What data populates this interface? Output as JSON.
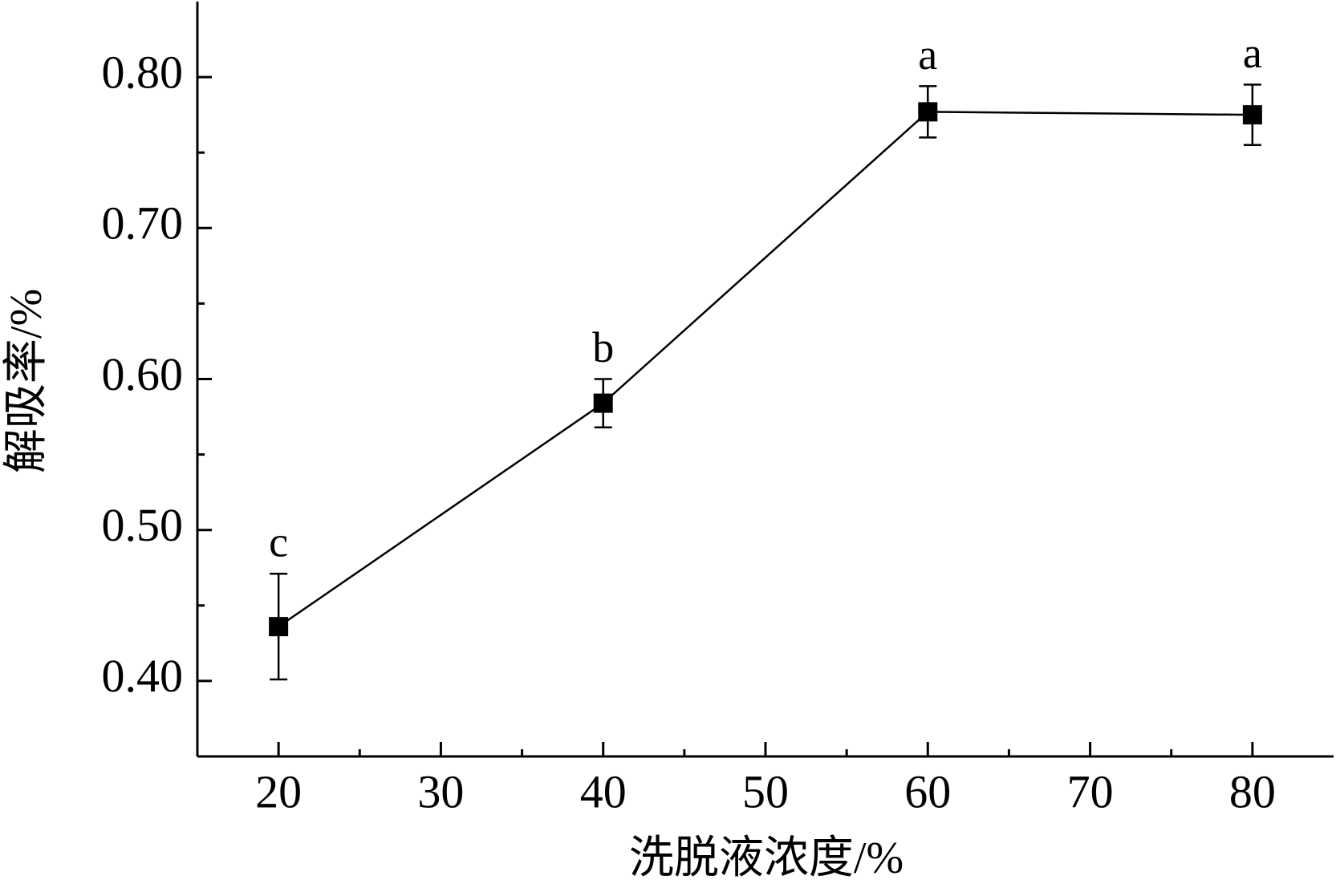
{
  "chart_data": {
    "type": "line",
    "xlabel": "洗脱液浓度/%",
    "ylabel": "解吸率/%",
    "x": [
      20,
      40,
      60,
      80
    ],
    "series": [
      {
        "color": "#000000",
        "values": [
          0.436,
          0.584,
          0.777,
          0.775
        ],
        "errors": [
          0.035,
          0.016,
          0.017,
          0.02
        ]
      }
    ],
    "point_labels": [
      "c",
      "b",
      "a",
      "a"
    ],
    "xlim": [
      15,
      85
    ],
    "xticks": [
      20,
      30,
      40,
      50,
      60,
      70,
      80
    ],
    "xminorticks": [
      25,
      35,
      45,
      55,
      65,
      75
    ],
    "ylim": [
      0.35,
      0.85
    ],
    "yticks": [
      {
        "value": 0.4,
        "label": "0.40"
      },
      {
        "value": 0.5,
        "label": "0.50"
      },
      {
        "value": 0.6,
        "label": "0.60"
      },
      {
        "value": 0.7,
        "label": "0.70"
      },
      {
        "value": 0.8,
        "label": "0.80"
      }
    ],
    "yminorticks": [
      0.45,
      0.55,
      0.65,
      0.75
    ]
  }
}
